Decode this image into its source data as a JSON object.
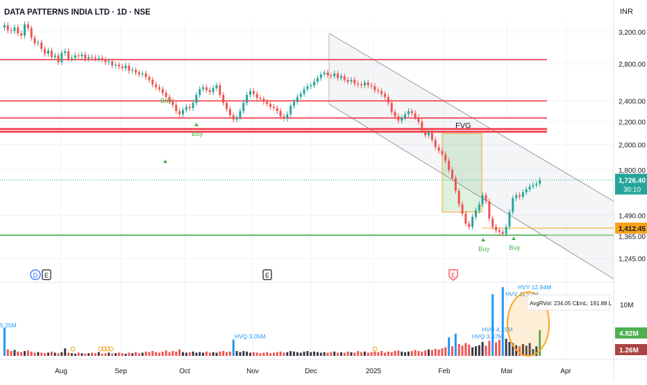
{
  "title": "DATA PATTERNS INDIA LTD · 1D · NSE",
  "currency": "INR",
  "colors": {
    "up": "#26a69a",
    "down": "#ef5350",
    "level_red": "#f23645",
    "level_green": "#4caf50",
    "fvg_orange": "#f5a623",
    "hvq_blue": "#2196f3",
    "price_tag_green": "#26a69a",
    "price_tag_orange": "#f7a21b",
    "vol_tag_green": "#4caf50",
    "vol_tag_red": "#a94442"
  },
  "price_axis": {
    "ticks": [
      {
        "value": 3200,
        "label": "3,200.00"
      },
      {
        "value": 2800,
        "label": "2,800.00"
      },
      {
        "value": 2400,
        "label": "2,400.00"
      },
      {
        "value": 2200,
        "label": "2,200.00"
      },
      {
        "value": 2000,
        "label": "2,000.00"
      },
      {
        "value": 1800,
        "label": "1,800.00"
      },
      {
        "value": 1490,
        "label": "1,490.00"
      },
      {
        "value": 1365,
        "label": "1,365.00"
      },
      {
        "value": 1245,
        "label": "1,245.00"
      }
    ],
    "last_price": {
      "value": 1726.4,
      "label": "1,726.40",
      "countdown": "30:10"
    },
    "marked_level": {
      "value": 1412.45,
      "label": "1,412.45"
    }
  },
  "volume_axis": {
    "tick_label": "10M",
    "tags": [
      {
        "label": "4.82M",
        "color": "#4caf50"
      },
      {
        "label": "1.26M",
        "color": "#a94442"
      }
    ]
  },
  "time_axis": [
    "Aug",
    "Sep",
    "Oct",
    "Nov",
    "Dec",
    "2025",
    "Feb",
    "Mar",
    "Apr"
  ],
  "levels": [
    {
      "value": 2850,
      "color": "red"
    },
    {
      "value": 2400,
      "color": "red"
    },
    {
      "value": 2235,
      "color": "red"
    },
    {
      "value": 2135,
      "color": "red"
    },
    {
      "value": 2110,
      "color": "red"
    },
    {
      "value": 1372,
      "color": "green"
    }
  ],
  "fvg_label": "FVG",
  "signals": [
    {
      "label": "Buy"
    },
    {
      "label": "Buy"
    },
    {
      "label": "Buy"
    },
    {
      "label": "Buy"
    }
  ],
  "event_markers": [
    "D",
    "E",
    "E",
    "E"
  ],
  "volume_labels": [
    "5.25M",
    "HVQ 3.05M",
    "HVQ 3.47M",
    "HVQ 4.15M",
    "HVV 11.52M",
    "HVY 12.84M"
  ],
  "info_box": {
    "avg_vol": "AvgRVol: 234.05 Cr",
    "ml": "1mL: 191.88 L"
  },
  "chart_data": {
    "type": "candlestick",
    "title": "DATA PATTERNS INDIA LTD · 1D · NSE",
    "y_scale": "log",
    "ylim": [
      1150,
      3350
    ],
    "x_period": [
      "2024-07",
      "2025-03"
    ],
    "price_series_close": [
      3290,
      3220,
      3210,
      3260,
      3180,
      3150,
      3300,
      3250,
      3120,
      3050,
      3060,
      2980,
      2920,
      2960,
      2880,
      2900,
      2820,
      2930,
      2950,
      2860,
      2870,
      2900,
      2890,
      2910,
      2860,
      2880,
      2870,
      2860,
      2870,
      2850,
      2820,
      2830,
      2780,
      2790,
      2770,
      2750,
      2780,
      2720,
      2730,
      2700,
      2680,
      2690,
      2650,
      2620,
      2570,
      2540,
      2520,
      2480,
      2440,
      2400,
      2360,
      2300,
      2270,
      2310,
      2340,
      2330,
      2380,
      2460,
      2520,
      2540,
      2510,
      2490,
      2530,
      2560,
      2460,
      2380,
      2320,
      2260,
      2220,
      2240,
      2300,
      2380,
      2460,
      2500,
      2470,
      2430,
      2420,
      2390,
      2370,
      2340,
      2330,
      2300,
      2250,
      2230,
      2270,
      2350,
      2390,
      2440,
      2470,
      2520,
      2550,
      2560,
      2600,
      2640,
      2680,
      2700,
      2670,
      2660,
      2690,
      2640,
      2660,
      2620,
      2600,
      2620,
      2580,
      2570,
      2560,
      2590,
      2560,
      2550,
      2510,
      2500,
      2470,
      2440,
      2380,
      2290,
      2250,
      2210,
      2240,
      2270,
      2300,
      2280,
      2240,
      2200,
      2120,
      2080,
      2100,
      2040,
      1980,
      1950,
      1920,
      1870,
      1800,
      1740,
      1650,
      1560,
      1500,
      1440,
      1420,
      1480,
      1520,
      1560,
      1620,
      1580,
      1470,
      1420,
      1400,
      1390,
      1380,
      1420,
      1510,
      1600,
      1620,
      1610,
      1640,
      1660,
      1680,
      1690,
      1700,
      1726.4
    ],
    "last_price": 1726.4,
    "levels": [
      2850,
      2400,
      2235,
      2135,
      2110,
      1372
    ],
    "marked_level": 1412.45,
    "fvg_zone": {
      "top": 2095,
      "bottom": 1510,
      "label": "FVG"
    },
    "channel": {
      "from": "2024-12",
      "to": "2025-03",
      "direction": "down"
    },
    "volume_series": [
      5.25,
      1.2,
      0.9,
      1.1,
      0.8,
      0.7,
      0.9,
      1.0,
      0.8,
      0.6,
      0.7,
      0.6,
      0.5,
      0.6,
      0.8,
      0.6,
      0.5,
      0.7,
      1.4,
      0.6,
      0.5,
      0.4,
      0.6,
      0.5,
      0.4,
      0.5,
      0.6,
      0.5,
      0.7,
      0.4,
      0.5,
      0.6,
      0.4,
      0.5,
      0.6,
      0.5,
      0.4,
      0.6,
      0.5,
      0.7,
      0.5,
      0.6,
      0.8,
      0.7,
      0.9,
      0.7,
      0.6,
      0.8,
      1.0,
      0.7,
      0.9,
      0.8,
      1.2,
      0.7,
      0.6,
      0.7,
      0.8,
      0.6,
      0.7,
      0.6,
      0.8,
      0.6,
      0.7,
      0.6,
      0.8,
      0.9,
      0.7,
      0.8,
      3.05,
      0.9,
      0.7,
      0.9,
      0.8,
      0.6,
      0.7,
      0.6,
      0.5,
      0.6,
      0.7,
      0.5,
      0.6,
      0.7,
      0.8,
      0.6,
      0.7,
      0.9,
      0.8,
      0.7,
      0.6,
      0.8,
      0.9,
      0.7,
      0.8,
      0.7,
      0.6,
      0.7,
      0.6,
      0.7,
      0.8,
      0.6,
      0.7,
      0.6,
      0.8,
      0.7,
      0.6,
      0.9,
      0.7,
      0.8,
      0.6,
      0.7,
      0.8,
      0.7,
      0.9,
      0.6,
      0.8,
      0.7,
      0.9,
      1.0,
      0.8,
      0.7,
      0.8,
      0.9,
      1.1,
      0.9,
      0.8,
      1.0,
      1.2,
      1.1,
      1.3,
      1.2,
      1.4,
      1.6,
      3.47,
      1.8,
      4.15,
      2.2,
      1.9,
      2.4,
      2.1,
      1.6,
      1.8,
      2.0,
      2.6,
      1.9,
      2.8,
      11.52,
      2.5,
      3.0,
      12.84,
      3.2,
      2.6,
      2.4,
      2.0,
      1.8,
      2.2,
      1.9,
      2.4,
      1.26,
      1.8,
      4.82
    ]
  }
}
